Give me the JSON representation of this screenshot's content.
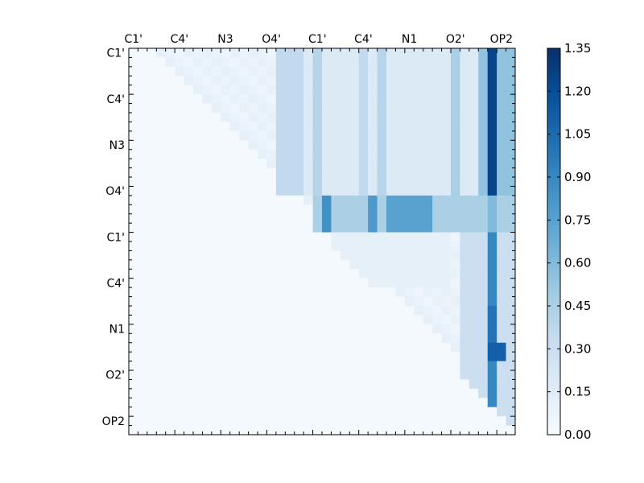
{
  "chart_data": {
    "type": "heatmap",
    "title": "",
    "xlabel": "",
    "ylabel": "",
    "n": 42,
    "colormap": "Blues",
    "x_ticks_top": [
      "C1'",
      "C4'",
      "N3",
      "O4'",
      "C1'",
      "C4'",
      "N1",
      "O2'",
      "OP2"
    ],
    "y_ticks_left": [
      "C1'",
      "C4'",
      "N3",
      "O4'",
      "C1'",
      "C4'",
      "N1",
      "O2'",
      "OP2"
    ],
    "tick_every": 5,
    "vmin": 0.0,
    "vmax": 1.35,
    "colorbar_ticks": [
      "0.00",
      "0.15",
      "0.30",
      "0.45",
      "0.60",
      "0.75",
      "0.90",
      "1.05",
      "1.20",
      "1.35"
    ],
    "grid": false,
    "blocks": [
      {
        "rows": [
          0,
          16
        ],
        "cols": [
          16,
          42
        ],
        "level": 0.18
      },
      {
        "rows": [
          0,
          16
        ],
        "cols": [
          38,
          42
        ],
        "level": 0.55
      },
      {
        "rows": [
          0,
          16
        ],
        "cols": [
          39,
          40
        ],
        "level": 1.25
      },
      {
        "rows": [
          0,
          16
        ],
        "cols": [
          16,
          19
        ],
        "level": 0.35
      },
      {
        "rows": [
          0,
          16
        ],
        "cols": [
          20,
          21
        ],
        "level": 0.4
      },
      {
        "rows": [
          0,
          16
        ],
        "cols": [
          25,
          26
        ],
        "level": 0.35
      },
      {
        "rows": [
          0,
          16
        ],
        "cols": [
          27,
          28
        ],
        "level": 0.4
      },
      {
        "rows": [
          0,
          16
        ],
        "cols": [
          35,
          36
        ],
        "level": 0.45
      },
      {
        "rows": [
          16,
          20
        ],
        "cols": [
          20,
          42
        ],
        "level": 0.45
      },
      {
        "rows": [
          16,
          20
        ],
        "cols": [
          21,
          22
        ],
        "level": 0.85
      },
      {
        "rows": [
          16,
          20
        ],
        "cols": [
          26,
          27
        ],
        "level": 0.8
      },
      {
        "rows": [
          16,
          20
        ],
        "cols": [
          28,
          33
        ],
        "level": 0.75
      },
      {
        "rows": [
          16,
          20
        ],
        "cols": [
          39,
          40
        ],
        "level": 0.6
      },
      {
        "rows": [
          20,
          42
        ],
        "cols": [
          36,
          42
        ],
        "level": 0.3
      },
      {
        "rows": [
          20,
          42
        ],
        "cols": [
          39,
          40
        ],
        "level": 0.9
      },
      {
        "rows": [
          28,
          34
        ],
        "cols": [
          39,
          40
        ],
        "level": 1.0
      },
      {
        "rows": [
          32,
          34
        ],
        "cols": [
          39,
          41
        ],
        "level": 1.1
      },
      {
        "rows": [
          20,
          26
        ],
        "cols": [
          22,
          35
        ],
        "level": 0.12
      }
    ]
  }
}
